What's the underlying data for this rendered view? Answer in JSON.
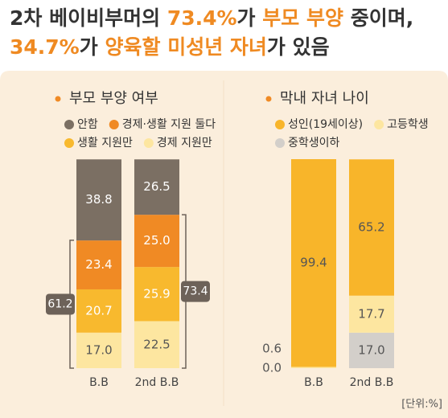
{
  "title": [
    [
      {
        "text": "2차 베이비부머의 ",
        "color": "#333333"
      },
      {
        "text": "73.4%",
        "color": "#ef8a22"
      },
      {
        "text": "가 ",
        "color": "#333333"
      },
      {
        "text": "부모 부양",
        "color": "#ef8a22"
      },
      {
        "text": " 중이며,",
        "color": "#333333"
      }
    ],
    [
      {
        "text": "34.7%",
        "color": "#ef8a22"
      },
      {
        "text": "가 ",
        "color": "#333333"
      },
      {
        "text": "양육할",
        "color": "#ef8a22"
      },
      {
        "text": " ",
        "color": "#333333"
      },
      {
        "text": "미성년 자녀",
        "color": "#ef8a22"
      },
      {
        "text": "가 있음",
        "color": "#333333"
      }
    ]
  ],
  "unit": "[단위:%]",
  "chart_data": [
    {
      "type": "stacked_bar",
      "title": "부모 부양 여부",
      "categories": [
        "B.B",
        "2nd B.B"
      ],
      "ylim": [
        0,
        100
      ],
      "series": [
        {
          "name": "안함",
          "color": "#7b6f63",
          "label_color": "#ffffff",
          "values": [
            38.8,
            26.5
          ]
        },
        {
          "name": "경제·생활 지원 둘다",
          "color": "#f08a24",
          "label_color": "#ffffff",
          "values": [
            23.4,
            25
          ],
          "value_labels": [
            "23.4",
            "25.0"
          ]
        },
        {
          "name": "생활 지원만",
          "color": "#f8b92e",
          "label_color": "#ffffff",
          "values": [
            20.7,
            25.9
          ]
        },
        {
          "name": "경제 지원만",
          "color": "#fde6a0",
          "label_color": "#555555",
          "values": [
            17,
            22.5
          ],
          "value_labels": [
            "17.0",
            "22.5"
          ]
        }
      ],
      "brackets": [
        {
          "value": 61.2,
          "side": "left"
        },
        {
          "value": 73.4,
          "side": "right"
        }
      ]
    },
    {
      "type": "stacked_bar",
      "title": "막내 자녀 나이",
      "categories": [
        "B.B",
        "2nd B.B"
      ],
      "ylim": [
        0,
        100
      ],
      "series": [
        {
          "name": "성인(19세이상)",
          "color": "#f8b52a",
          "label_color": "#555555",
          "values": [
            99.4,
            65.2
          ]
        },
        {
          "name": "고등학생",
          "color": "#fde6a0",
          "label_color": "#555555",
          "values": [
            0.6,
            17.7
          ]
        },
        {
          "name": "중학생이하",
          "color": "#d3cfca",
          "label_color": "#555555",
          "values": [
            0,
            17
          ],
          "value_labels": [
            "0.0",
            "17.0"
          ]
        }
      ]
    }
  ]
}
